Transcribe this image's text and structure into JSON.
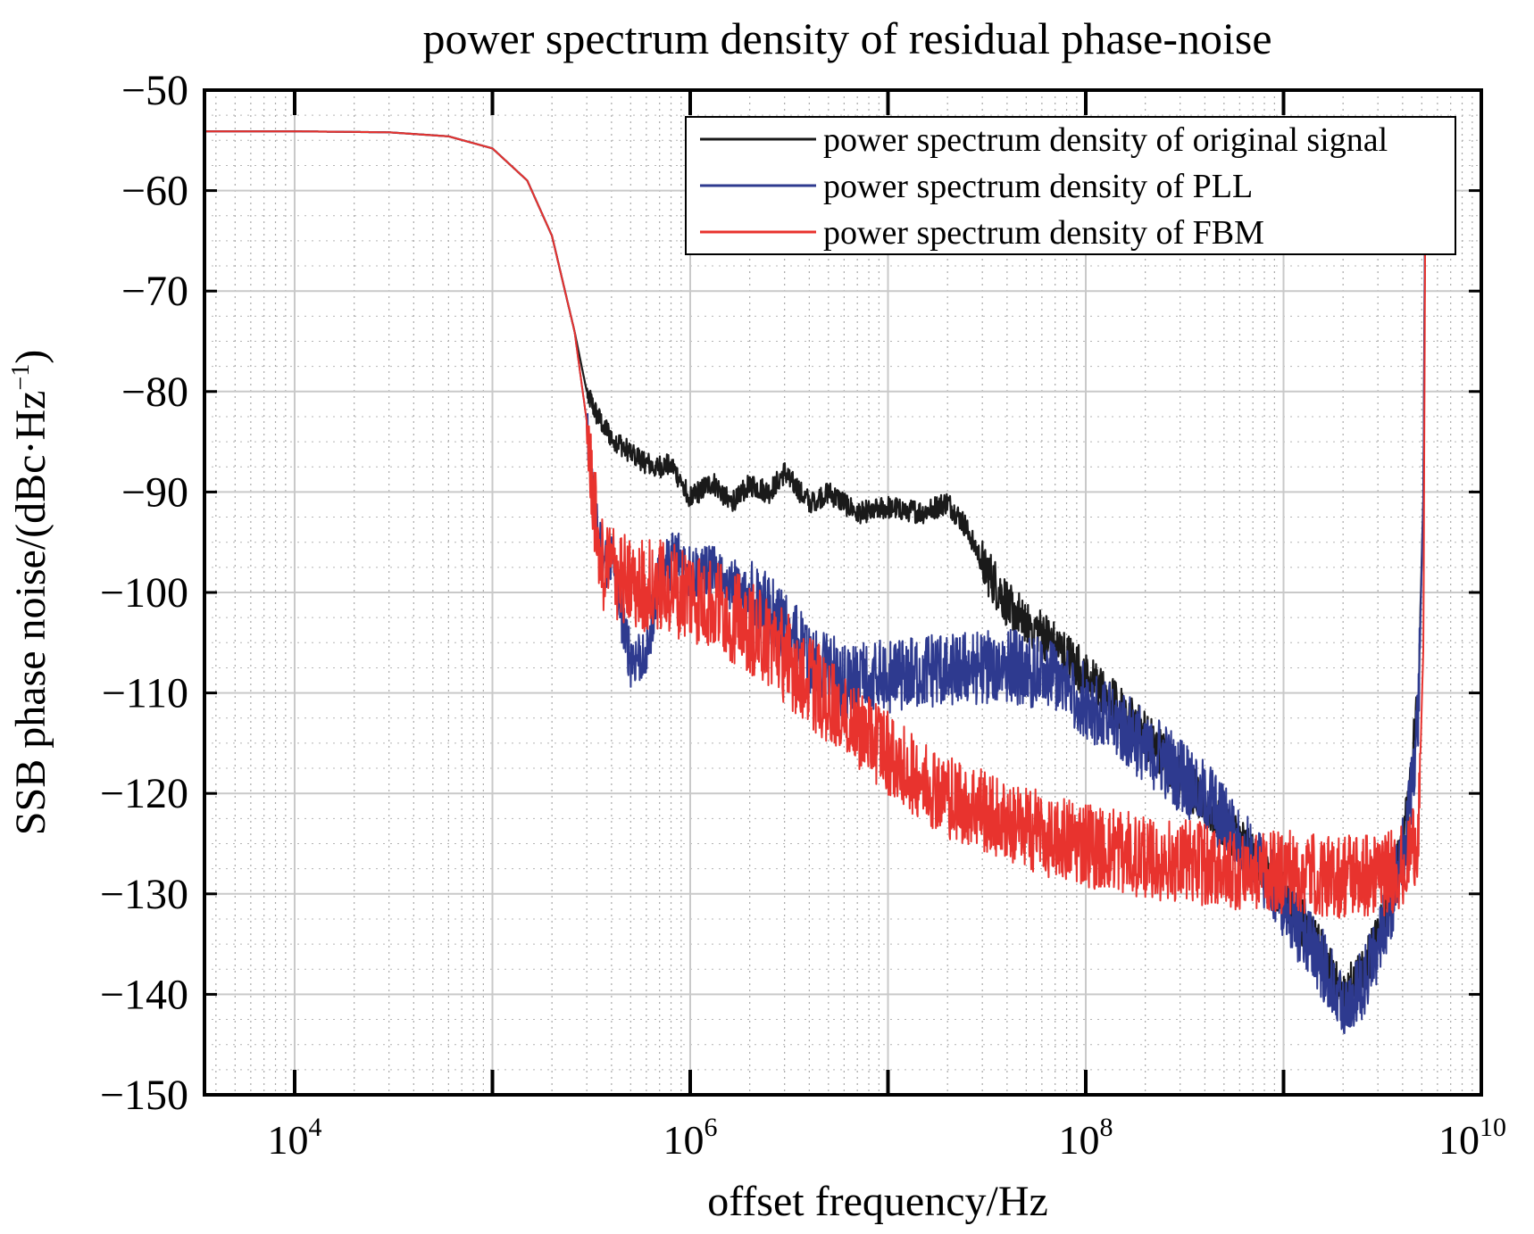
{
  "chart_data": {
    "type": "line",
    "title": "power spectrum density of residual phase-noise",
    "xlabel": "offset frequency/Hz",
    "ylabel": "SSB phase noise/(dBc·Hz",
    "ylabel_sup": "−1",
    "ylabel_close": ")",
    "x_scale": "log",
    "xlim": [
      3500,
      10000000000
    ],
    "ylim": [
      -150,
      -50
    ],
    "x_ticks": [
      10000,
      1000000,
      100000000,
      10000000000
    ],
    "x_tick_labels": [
      {
        "base": "10",
        "exp": "4"
      },
      {
        "base": "10",
        "exp": "6"
      },
      {
        "base": "10",
        "exp": "8"
      },
      {
        "base": "10",
        "exp": "10"
      }
    ],
    "y_ticks": [
      -50,
      -60,
      -70,
      -80,
      -90,
      -100,
      -110,
      -120,
      -130,
      -140,
      -150
    ],
    "y_tick_labels": [
      "−50",
      "−60",
      "−70",
      "−80",
      "−90",
      "−100",
      "−110",
      "−120",
      "−130",
      "−140",
      "−150"
    ],
    "grid": true,
    "legend_position": "top-right",
    "series": [
      {
        "name": "power spectrum density of original signal",
        "color": "#1a1a1a",
        "points": [
          [
            3500,
            -54.1
          ],
          [
            10000,
            -54.1
          ],
          [
            30000,
            -54.2
          ],
          [
            60000,
            -54.6
          ],
          [
            100000,
            -55.8
          ],
          [
            150000,
            -59.0
          ],
          [
            200000,
            -64.5
          ],
          [
            260000,
            -74.0
          ],
          [
            300000,
            -80.0
          ],
          [
            340000,
            -82.5
          ],
          [
            400000,
            -84.5
          ],
          [
            500000,
            -86.0
          ],
          [
            650000,
            -87.5
          ],
          [
            800000,
            -87.2
          ],
          [
            1000000,
            -90.5
          ],
          [
            1300000,
            -89.0
          ],
          [
            1600000,
            -91.0
          ],
          [
            2000000,
            -89.2
          ],
          [
            2500000,
            -90.0
          ],
          [
            3000000,
            -88.0
          ],
          [
            4000000,
            -91.0
          ],
          [
            5000000,
            -90.0
          ],
          [
            7000000,
            -92.0
          ],
          [
            10000000,
            -91.5
          ],
          [
            15000000,
            -92.0
          ],
          [
            20000000,
            -91.0
          ],
          [
            25000000,
            -93.5
          ],
          [
            30000000,
            -97.0
          ],
          [
            40000000,
            -101.0
          ],
          [
            60000000,
            -104.0
          ],
          [
            100000000,
            -108.0
          ],
          [
            200000000,
            -114.0
          ],
          [
            400000000,
            -121.0
          ],
          [
            700000000,
            -126.0
          ],
          [
            1000000000,
            -130.0
          ],
          [
            1500000000,
            -135.0
          ],
          [
            2000000000,
            -140.0
          ],
          [
            2600000000,
            -137.0
          ],
          [
            3500000000,
            -130.0
          ],
          [
            4200000000,
            -122.0
          ],
          [
            4800000000,
            -110.0
          ],
          [
            5100000000,
            -90.0
          ],
          [
            5200000000,
            -60.0
          ]
        ]
      },
      {
        "name": "power spectrum density of PLL",
        "color": "#2e3a8f",
        "points": [
          [
            3500,
            -54.1
          ],
          [
            10000,
            -54.1
          ],
          [
            30000,
            -54.2
          ],
          [
            60000,
            -54.6
          ],
          [
            100000,
            -55.8
          ],
          [
            150000,
            -59.0
          ],
          [
            200000,
            -64.5
          ],
          [
            260000,
            -74.0
          ],
          [
            300000,
            -83.0
          ],
          [
            330000,
            -92.0
          ],
          [
            360000,
            -97.0
          ],
          [
            400000,
            -96.5
          ],
          [
            450000,
            -102.0
          ],
          [
            500000,
            -106.5
          ],
          [
            600000,
            -106.0
          ],
          [
            700000,
            -98.0
          ],
          [
            850000,
            -96.0
          ],
          [
            1000000,
            -98.0
          ],
          [
            1300000,
            -97.5
          ],
          [
            1700000,
            -99.0
          ],
          [
            2500000,
            -101.5
          ],
          [
            4000000,
            -106.0
          ],
          [
            6000000,
            -108.5
          ],
          [
            10000000,
            -108.0
          ],
          [
            20000000,
            -107.5
          ],
          [
            40000000,
            -107.0
          ],
          [
            70000000,
            -108.0
          ],
          [
            100000000,
            -110.5
          ],
          [
            200000000,
            -115.0
          ],
          [
            400000000,
            -120.0
          ],
          [
            700000000,
            -126.0
          ],
          [
            1000000000,
            -130.5
          ],
          [
            1500000000,
            -136.0
          ],
          [
            2000000000,
            -141.0
          ],
          [
            2600000000,
            -138.0
          ],
          [
            3500000000,
            -131.0
          ],
          [
            4200000000,
            -124.0
          ],
          [
            4800000000,
            -112.0
          ],
          [
            5100000000,
            -90.0
          ],
          [
            5200000000,
            -60.0
          ]
        ]
      },
      {
        "name": "power spectrum density of FBM",
        "color": "#e8332e",
        "points": [
          [
            3500,
            -54.1
          ],
          [
            10000,
            -54.1
          ],
          [
            30000,
            -54.2
          ],
          [
            60000,
            -54.6
          ],
          [
            100000,
            -55.8
          ],
          [
            150000,
            -59.0
          ],
          [
            200000,
            -64.5
          ],
          [
            260000,
            -74.0
          ],
          [
            300000,
            -83.0
          ],
          [
            330000,
            -92.0
          ],
          [
            360000,
            -97.0
          ],
          [
            400000,
            -97.5
          ],
          [
            500000,
            -99.0
          ],
          [
            700000,
            -99.0
          ],
          [
            1000000,
            -100.0
          ],
          [
            1500000,
            -101.5
          ],
          [
            2500000,
            -104.5
          ],
          [
            4000000,
            -108.5
          ],
          [
            7000000,
            -113.0
          ],
          [
            12000000,
            -117.0
          ],
          [
            20000000,
            -120.0
          ],
          [
            40000000,
            -122.5
          ],
          [
            80000000,
            -124.5
          ],
          [
            200000000,
            -126.0
          ],
          [
            500000000,
            -127.0
          ],
          [
            1000000000,
            -127.5
          ],
          [
            2000000000,
            -128.0
          ],
          [
            3000000000,
            -128.0
          ],
          [
            4000000000,
            -127.0
          ],
          [
            4800000000,
            -124.0
          ],
          [
            5100000000,
            -105.0
          ],
          [
            5200000000,
            -64.0
          ]
        ]
      }
    ]
  }
}
